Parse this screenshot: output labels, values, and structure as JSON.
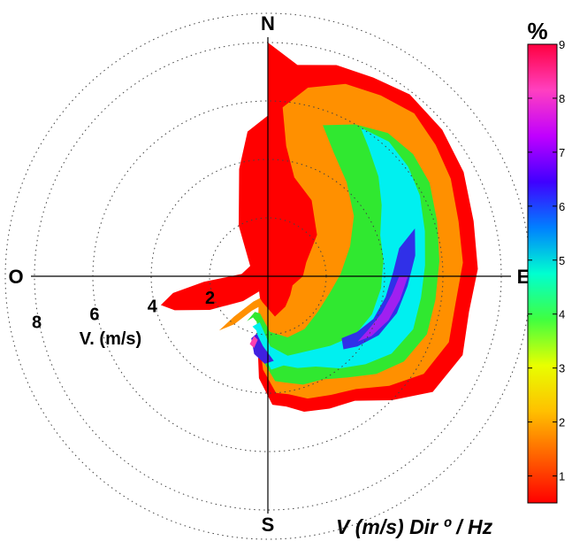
{
  "chart_data": {
    "type": "heatmap",
    "subtype": "polar",
    "directions": {
      "north": "N",
      "east": "E",
      "south": "S",
      "west": "O"
    },
    "radial_axis": {
      "label": "V. (m/s)",
      "ticks": [
        2,
        4,
        6,
        8
      ],
      "tick_labels": [
        "2",
        "4",
        "6",
        "8"
      ],
      "range": [
        0,
        9
      ]
    },
    "colorbar": {
      "title": "%",
      "range": [
        0.5,
        9
      ],
      "ticks": [
        1,
        2,
        3,
        4,
        5,
        6,
        7,
        8,
        9
      ],
      "tick_labels": [
        "1",
        "2",
        "3",
        "4",
        "5",
        "6",
        "7",
        "8",
        "9"
      ],
      "colormap": [
        "#ff0000",
        "#ff6000",
        "#ffc000",
        "#e8ff00",
        "#40ff40",
        "#00ffd0",
        "#0080ff",
        "#4000ff",
        "#c000ff",
        "#ff40c0",
        "#ff0040"
      ]
    },
    "caption": "V (m/s) Dir º / Hz",
    "contour_levels": [
      {
        "level": 0.5,
        "color": "#ff0000",
        "polygon": [
          [
            0,
            5.5
          ],
          [
            0,
            8.0
          ],
          [
            8,
            7.3
          ],
          [
            18,
            7.6
          ],
          [
            28,
            7.7
          ],
          [
            38,
            7.9
          ],
          [
            50,
            7.8
          ],
          [
            62,
            7.6
          ],
          [
            75,
            7.3
          ],
          [
            88,
            7.2
          ],
          [
            100,
            7.0
          ],
          [
            112,
            7.2
          ],
          [
            125,
            6.9
          ],
          [
            135,
            6.0
          ],
          [
            145,
            5.2
          ],
          [
            155,
            5.0
          ],
          [
            165,
            4.8
          ],
          [
            172,
            4.5
          ],
          [
            178,
            4.4
          ],
          [
            185,
            3.5
          ],
          [
            192,
            1.8
          ],
          [
            200,
            0.8
          ],
          [
            210,
            0.6
          ],
          [
            225,
            1.2
          ],
          [
            240,
            2.3
          ],
          [
            250,
            3.4
          ],
          [
            255,
            3.8
          ],
          [
            260,
            3.3
          ],
          [
            265,
            2.2
          ],
          [
            275,
            0.9
          ],
          [
            300,
            0.7
          ],
          [
            330,
            2.0
          ],
          [
            345,
            3.8
          ],
          [
            352,
            5.0
          ]
        ]
      },
      {
        "level": 1.5,
        "color": "#ff9000",
        "polygon": [
          [
            5,
            5.8
          ],
          [
            12,
            6.6
          ],
          [
            22,
            7.1
          ],
          [
            32,
            7.3
          ],
          [
            42,
            7.5
          ],
          [
            52,
            7.3
          ],
          [
            62,
            7.1
          ],
          [
            74,
            6.8
          ],
          [
            86,
            6.7
          ],
          [
            98,
            6.5
          ],
          [
            110,
            6.6
          ],
          [
            122,
            6.3
          ],
          [
            132,
            5.6
          ],
          [
            142,
            4.9
          ],
          [
            152,
            4.6
          ],
          [
            162,
            4.4
          ],
          [
            170,
            4.1
          ],
          [
            176,
            4.0
          ],
          [
            183,
            3.2
          ],
          [
            190,
            1.9
          ],
          [
            197,
            1.1
          ],
          [
            205,
            1.3
          ],
          [
            215,
            2.0
          ],
          [
            222,
            2.5
          ],
          [
            220,
            1.8
          ],
          [
            210,
            1.0
          ],
          [
            200,
            0.8
          ],
          [
            192,
            0.9
          ],
          [
            170,
            1.4
          ],
          [
            150,
            1.2
          ],
          [
            130,
            1.0
          ],
          [
            110,
            0.9
          ],
          [
            90,
            1.2
          ],
          [
            70,
            1.4
          ],
          [
            50,
            2.2
          ],
          [
            30,
            3.0
          ],
          [
            15,
            3.5
          ],
          [
            8,
            4.5
          ]
        ]
      },
      {
        "level": 3,
        "color": "#30e830",
        "polygon": [
          [
            20,
            5.5
          ],
          [
            30,
            6.0
          ],
          [
            40,
            6.4
          ],
          [
            50,
            6.5
          ],
          [
            60,
            6.4
          ],
          [
            72,
            6.1
          ],
          [
            85,
            5.9
          ],
          [
            98,
            5.8
          ],
          [
            110,
            5.8
          ],
          [
            122,
            5.5
          ],
          [
            132,
            5.0
          ],
          [
            142,
            4.4
          ],
          [
            152,
            4.0
          ],
          [
            162,
            3.9
          ],
          [
            170,
            3.7
          ],
          [
            176,
            3.6
          ],
          [
            182,
            3.0
          ],
          [
            188,
            2.1
          ],
          [
            194,
            1.6
          ],
          [
            200,
            1.5
          ],
          [
            205,
            1.7
          ],
          [
            200,
            1.3
          ],
          [
            192,
            1.3
          ],
          [
            178,
            1.9
          ],
          [
            162,
            2.2
          ],
          [
            145,
            2.2
          ],
          [
            125,
            2.1
          ],
          [
            105,
            2.2
          ],
          [
            88,
            2.5
          ],
          [
            70,
            3.0
          ],
          [
            55,
            3.6
          ],
          [
            40,
            4.2
          ],
          [
            28,
            4.8
          ]
        ]
      },
      {
        "level": 4.5,
        "color": "#00f0f0",
        "polygon": [
          [
            32,
            6.0
          ],
          [
            42,
            6.2
          ],
          [
            52,
            6.1
          ],
          [
            62,
            5.9
          ],
          [
            74,
            5.6
          ],
          [
            86,
            5.4
          ],
          [
            98,
            5.3
          ],
          [
            110,
            5.3
          ],
          [
            122,
            5.0
          ],
          [
            132,
            4.5
          ],
          [
            142,
            4.0
          ],
          [
            152,
            3.5
          ],
          [
            162,
            3.3
          ],
          [
            170,
            3.1
          ],
          [
            178,
            3.2
          ],
          [
            186,
            2.5
          ],
          [
            192,
            1.9
          ],
          [
            197,
            1.8
          ],
          [
            190,
            1.6
          ],
          [
            178,
            2.4
          ],
          [
            166,
            2.8
          ],
          [
            152,
            2.9
          ],
          [
            138,
            3.2
          ],
          [
            124,
            3.6
          ],
          [
            110,
            3.8
          ],
          [
            96,
            3.9
          ],
          [
            82,
            4.0
          ],
          [
            70,
            4.1
          ],
          [
            58,
            4.6
          ],
          [
            48,
            5.1
          ],
          [
            38,
            5.6
          ]
        ]
      },
      {
        "level": 6,
        "color": "#3030e8",
        "polygon": [
          [
            72,
            5.3
          ],
          [
            82,
            5.1
          ],
          [
            94,
            4.8
          ],
          [
            106,
            4.6
          ],
          [
            118,
            4.3
          ],
          [
            128,
            3.9
          ],
          [
            134,
            3.6
          ],
          [
            130,
            3.3
          ],
          [
            122,
            3.6
          ],
          [
            112,
            3.9
          ],
          [
            100,
            4.1
          ],
          [
            88,
            4.3
          ],
          [
            78,
            4.6
          ]
        ]
      },
      {
        "level": 6,
        "color": "#4020e0",
        "polygon": [
          [
            176,
            2.9
          ],
          [
            184,
            2.4
          ],
          [
            191,
            2.0
          ],
          [
            195,
            2.2
          ],
          [
            190,
            2.7
          ],
          [
            182,
            3.0
          ]
        ]
      },
      {
        "level": 7,
        "color": "#a020f0",
        "polygon": [
          [
            90,
            4.8
          ],
          [
            100,
            4.6
          ],
          [
            110,
            4.4
          ],
          [
            120,
            4.1
          ],
          [
            126,
            3.8
          ],
          [
            118,
            3.9
          ],
          [
            108,
            4.1
          ],
          [
            98,
            4.3
          ],
          [
            90,
            4.5
          ]
        ]
      },
      {
        "level": 8,
        "color": "#ff40b0",
        "polygon": [
          [
            189,
            2.2
          ],
          [
            193,
            2.1
          ],
          [
            195,
            2.4
          ],
          [
            191,
            2.5
          ]
        ]
      }
    ]
  }
}
